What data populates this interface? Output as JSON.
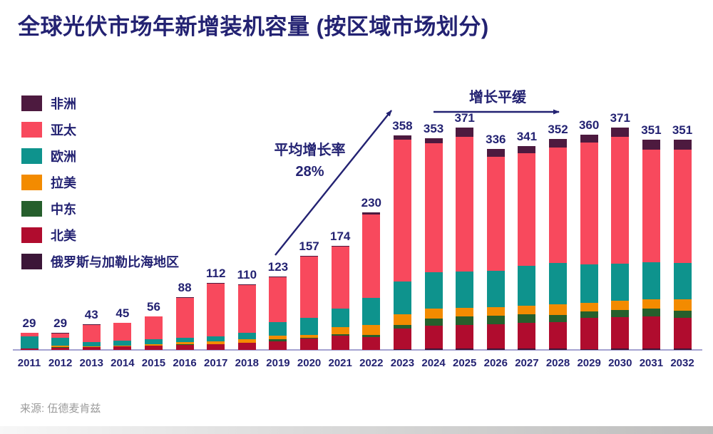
{
  "title": "全球光伏市场年新增装机容量 (按区域市场划分)",
  "source": "来源: 伍德麦肯兹",
  "annotations": {
    "growth_rate_line1": "平均增长率",
    "growth_rate_line2": "28%",
    "plateau": "增长平缓"
  },
  "colors": {
    "title_text": "#232272",
    "value_label_text": "#232272",
    "axis_line": "#a5a3d1",
    "annotation_arrow": "#232272",
    "source_text": "#9b9b9b"
  },
  "chart_data": {
    "type": "bar",
    "subtype": "stacked-vertical",
    "title": "全球光伏市场年新增装机容量 (按区域市场划分)",
    "xlabel": "",
    "ylabel": "",
    "grid": false,
    "legend_position": "left",
    "y_axis_visible": false,
    "ylim": [
      0,
      400
    ],
    "categories": [
      "2011",
      "2012",
      "2013",
      "2014",
      "2015",
      "2016",
      "2017",
      "2018",
      "2019",
      "2020",
      "2021",
      "2022",
      "2023",
      "2024",
      "2025",
      "2026",
      "2027",
      "2028",
      "2029",
      "2030",
      "2031",
      "2032"
    ],
    "totals": [
      29,
      29,
      43,
      45,
      56,
      88,
      112,
      110,
      123,
      157,
      174,
      230,
      358,
      353,
      371,
      336,
      341,
      352,
      360,
      371,
      351,
      351
    ],
    "series": [
      {
        "key": "africa",
        "name": "非洲",
        "color": "#4d1a3f",
        "values": [
          0,
          1,
          1,
          0,
          0,
          1,
          1,
          1,
          1,
          1,
          1,
          4,
          7,
          8,
          15,
          13,
          13,
          14,
          14,
          15,
          16,
          17
        ]
      },
      {
        "key": "asia_pacific",
        "name": "亚太",
        "color": "#f8495d",
        "values": [
          6,
          8,
          29,
          30,
          38,
          67,
          88,
          81,
          75,
          103,
          104,
          139,
          237,
          215,
          225,
          191,
          188,
          193,
          203,
          212,
          189,
          189
        ]
      },
      {
        "key": "europe",
        "name": "欧洲",
        "color": "#0e938d",
        "values": [
          21,
          13,
          7,
          8,
          9,
          7,
          9,
          10,
          23,
          28,
          31,
          45,
          55,
          61,
          61,
          61,
          66,
          69,
          64,
          62,
          61,
          60
        ]
      },
      {
        "key": "latin_america",
        "name": "拉美",
        "color": "#f38b00",
        "values": [
          0,
          2,
          1,
          1,
          2,
          3,
          4,
          6,
          6,
          5,
          12,
          17,
          17,
          17,
          14,
          14,
          14,
          18,
          15,
          15,
          16,
          19
        ]
      },
      {
        "key": "middle_east",
        "name": "中东",
        "color": "#265f2c",
        "values": [
          0,
          1,
          0,
          0,
          0,
          1,
          0,
          0,
          4,
          1,
          2,
          3,
          6,
          11,
          14,
          14,
          15,
          12,
          11,
          12,
          13,
          12
        ]
      },
      {
        "key": "north_america",
        "name": "北美",
        "color": "#b00c2e",
        "values": [
          2,
          4,
          5,
          6,
          7,
          9,
          10,
          12,
          14,
          19,
          24,
          22,
          35,
          39,
          40,
          41,
          43,
          44,
          52,
          53,
          54,
          52
        ]
      },
      {
        "key": "russia_caribbean",
        "name": "俄罗斯与加勒比海地区",
        "color": "#3c1638",
        "values": [
          0,
          0,
          0,
          0,
          0,
          0,
          0,
          0,
          0,
          0,
          0,
          0,
          1,
          2,
          2,
          2,
          2,
          2,
          1,
          2,
          2,
          2
        ]
      }
    ],
    "stack_order_bottom_to_top": [
      "russia_caribbean",
      "north_america",
      "middle_east",
      "latin_america",
      "europe",
      "asia_pacific",
      "africa"
    ]
  }
}
